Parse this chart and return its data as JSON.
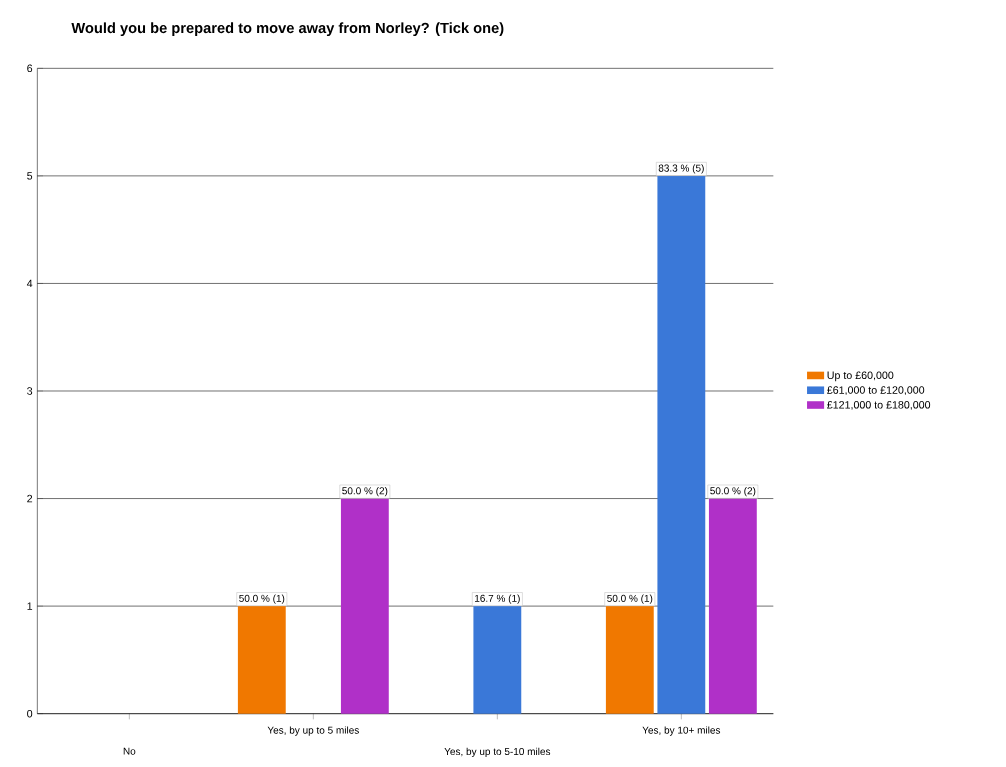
{
  "chart_data": {
    "type": "bar",
    "title": "Would you be prepared to move away from Norley? (Tick one)",
    "categories": [
      "No",
      "Yes, by up to 5 miles",
      "Yes, by up to 5-10 miles",
      "Yes, by 10+ miles"
    ],
    "series": [
      {
        "name": "Up to £60,000",
        "color": "#f07800",
        "values": [
          0,
          1,
          0,
          1
        ],
        "value_labels": [
          null,
          "50.0 % (1)",
          null,
          "50.0 % (1)"
        ]
      },
      {
        "name": "£61,000 to £120,000",
        "color": "#3a78d8",
        "values": [
          0,
          0,
          1,
          5
        ],
        "value_labels": [
          null,
          null,
          "16.7 % (1)",
          "83.3 % (5)"
        ]
      },
      {
        "name": "£121,000 to £180,000",
        "color": "#b030c8",
        "values": [
          0,
          2,
          0,
          2
        ],
        "value_labels": [
          null,
          "50.0 % (2)",
          null,
          "50.0 % (2)"
        ]
      }
    ],
    "ylim": [
      0,
      6
    ],
    "yticks": [
      0,
      1,
      2,
      3,
      4,
      5,
      6
    ],
    "grid": "y",
    "legend": "right"
  }
}
